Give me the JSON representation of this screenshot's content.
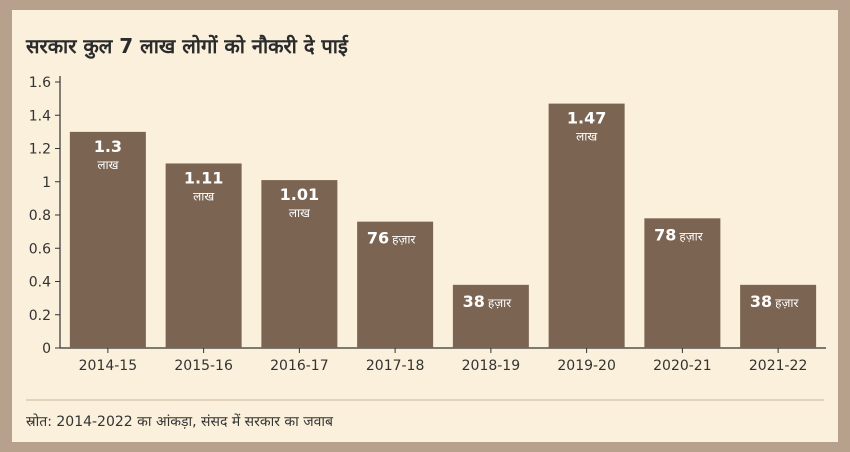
{
  "chart_data": {
    "type": "bar",
    "title": "सरकार कुल 7 लाख लोगों को नौकरी दे पाई",
    "categories": [
      "2014-15",
      "2015-16",
      "2016-17",
      "2017-18",
      "2018-19",
      "2019-20",
      "2020-21",
      "2021-22"
    ],
    "values": [
      1.3,
      1.11,
      1.01,
      0.76,
      0.38,
      1.47,
      0.78,
      0.38
    ],
    "data_labels": [
      {
        "value": "1.3",
        "unit": "लाख",
        "stacked": true
      },
      {
        "value": "1.11",
        "unit": "लाख",
        "stacked": true
      },
      {
        "value": "1.01",
        "unit": "लाख",
        "stacked": true
      },
      {
        "value": "76",
        "unit": "हज़ार",
        "stacked": false
      },
      {
        "value": "38",
        "unit": "हज़ार",
        "stacked": false
      },
      {
        "value": "1.47",
        "unit": "लाख",
        "stacked": true
      },
      {
        "value": "78",
        "unit": "हज़ार",
        "stacked": false
      },
      {
        "value": "38",
        "unit": "हज़ार",
        "stacked": false
      }
    ],
    "yticks": [
      "0",
      "0.2",
      "0.4",
      "0.6",
      "0.8",
      "1",
      "1.2",
      "1.4",
      "1.6"
    ],
    "ylim": [
      0,
      1.6
    ],
    "bar_color": "#7b6452",
    "grid": false,
    "xlabel": "",
    "ylabel": ""
  },
  "source": "स्रोत: 2014-2022 का आंकड़ा, संसद में सरकार का जवाब",
  "colors": {
    "background": "#faf0dc",
    "frame": "#b7a18d",
    "bar": "#7b6452",
    "separator": "#c9b79c"
  }
}
